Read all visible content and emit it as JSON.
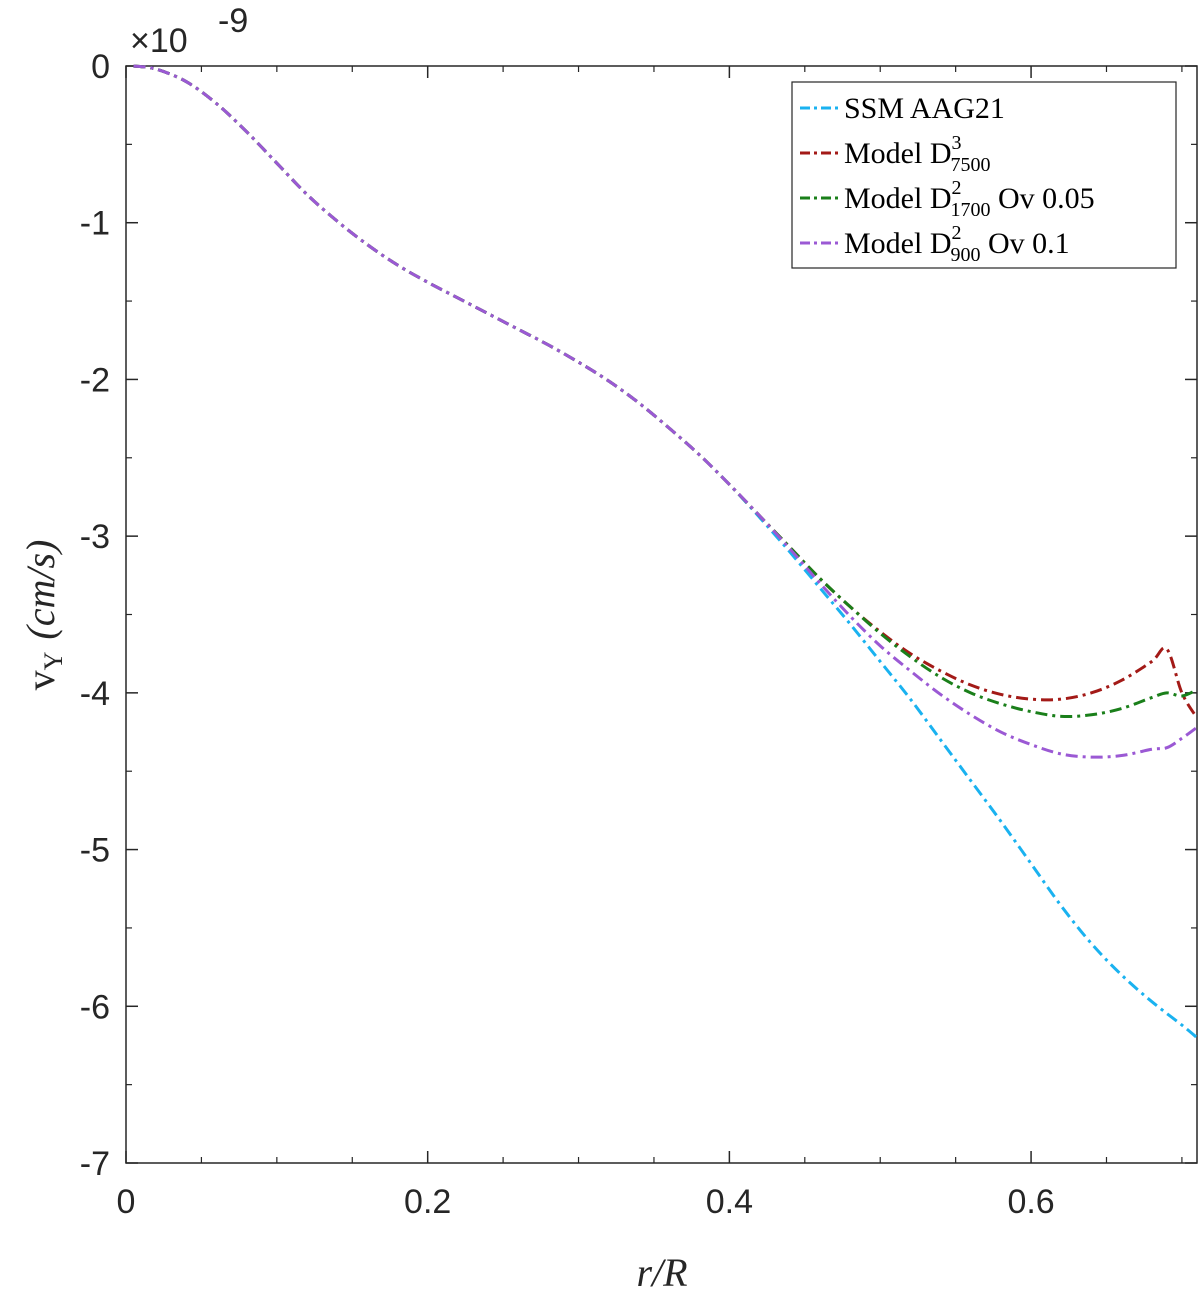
{
  "chart_data": {
    "type": "line",
    "xlabel": "r/R",
    "ylabel_main": "v",
    "ylabel_sub": "Y",
    "ylabel_unit": "(cm/s)",
    "exponent_label": "×10",
    "exponent_power": "-9",
    "xlim": [
      0,
      0.71
    ],
    "ylim": [
      -7,
      0
    ],
    "x_ticks": [
      0,
      0.2,
      0.4,
      0.6
    ],
    "x_tick_labels": [
      "0",
      "0.2",
      "0.4",
      "0.6"
    ],
    "y_ticks": [
      0,
      -1,
      -2,
      -3,
      -4,
      -5,
      -6,
      -7
    ],
    "y_tick_labels": [
      "0",
      "-1",
      "-2",
      "-3",
      "-4",
      "-5",
      "-6",
      "-7"
    ],
    "grid": false,
    "legend_position": "top-right",
    "series": [
      {
        "name": "SSM AAG21",
        "legend_main": "SSM AAG21",
        "legend_sup": "",
        "legend_sub": "",
        "legend_suffix": "",
        "color": "#1ab2f0",
        "x": [
          0.005,
          0.02,
          0.04,
          0.06,
          0.08,
          0.1,
          0.12,
          0.14,
          0.16,
          0.18,
          0.2,
          0.22,
          0.24,
          0.26,
          0.28,
          0.3,
          0.32,
          0.34,
          0.36,
          0.38,
          0.4,
          0.42,
          0.44,
          0.46,
          0.48,
          0.5,
          0.52,
          0.54,
          0.56,
          0.58,
          0.6,
          0.62,
          0.64,
          0.66,
          0.68,
          0.7,
          0.71
        ],
        "y": [
          0,
          -0.02,
          -0.1,
          -0.24,
          -0.42,
          -0.62,
          -0.82,
          -0.99,
          -1.14,
          -1.27,
          -1.38,
          -1.48,
          -1.58,
          -1.68,
          -1.78,
          -1.89,
          -2.01,
          -2.15,
          -2.31,
          -2.48,
          -2.67,
          -2.88,
          -3.1,
          -3.33,
          -3.56,
          -3.8,
          -4.04,
          -4.3,
          -4.56,
          -4.82,
          -5.09,
          -5.36,
          -5.6,
          -5.8,
          -5.97,
          -6.12,
          -6.2
        ]
      },
      {
        "name": "Model D_7500^3",
        "legend_main": "Model D",
        "legend_sup": "3",
        "legend_sub": "7500",
        "legend_suffix": "",
        "color": "#a31a17",
        "x": [
          0.005,
          0.02,
          0.04,
          0.06,
          0.08,
          0.1,
          0.12,
          0.14,
          0.16,
          0.18,
          0.2,
          0.22,
          0.24,
          0.26,
          0.28,
          0.3,
          0.32,
          0.34,
          0.36,
          0.38,
          0.4,
          0.42,
          0.44,
          0.46,
          0.48,
          0.5,
          0.52,
          0.54,
          0.56,
          0.58,
          0.6,
          0.62,
          0.64,
          0.66,
          0.68,
          0.69,
          0.7,
          0.71
        ],
        "y": [
          0,
          -0.02,
          -0.1,
          -0.24,
          -0.42,
          -0.62,
          -0.82,
          -0.99,
          -1.14,
          -1.27,
          -1.38,
          -1.48,
          -1.58,
          -1.68,
          -1.78,
          -1.89,
          -2.01,
          -2.15,
          -2.31,
          -2.48,
          -2.67,
          -2.87,
          -3.07,
          -3.27,
          -3.45,
          -3.61,
          -3.75,
          -3.86,
          -3.95,
          -4.01,
          -4.04,
          -4.04,
          -4.0,
          -3.92,
          -3.8,
          -3.72,
          -4.0,
          -4.16
        ]
      },
      {
        "name": "Model D_1700^2 Ov 0.05",
        "legend_main": "Model D",
        "legend_sup": "2",
        "legend_sub": "1700",
        "legend_suffix": " Ov 0.05",
        "color": "#1a7f1a",
        "x": [
          0.005,
          0.02,
          0.04,
          0.06,
          0.08,
          0.1,
          0.12,
          0.14,
          0.16,
          0.18,
          0.2,
          0.22,
          0.24,
          0.26,
          0.28,
          0.3,
          0.32,
          0.34,
          0.36,
          0.38,
          0.4,
          0.42,
          0.44,
          0.46,
          0.48,
          0.5,
          0.52,
          0.54,
          0.56,
          0.58,
          0.6,
          0.62,
          0.64,
          0.66,
          0.68,
          0.69,
          0.7,
          0.71
        ],
        "y": [
          0,
          -0.02,
          -0.1,
          -0.24,
          -0.42,
          -0.62,
          -0.82,
          -0.99,
          -1.14,
          -1.27,
          -1.38,
          -1.48,
          -1.58,
          -1.68,
          -1.78,
          -1.89,
          -2.01,
          -2.15,
          -2.31,
          -2.48,
          -2.67,
          -2.87,
          -3.07,
          -3.27,
          -3.45,
          -3.62,
          -3.77,
          -3.9,
          -4.0,
          -4.07,
          -4.12,
          -4.15,
          -4.14,
          -4.1,
          -4.03,
          -4.0,
          -4.02,
          -3.98
        ]
      },
      {
        "name": "Model D_900^2 Ov 0.1",
        "legend_main": "Model D",
        "legend_sup": "2",
        "legend_sub": "900",
        "legend_suffix": " Ov 0.1",
        "color": "#9b59d4",
        "x": [
          0.005,
          0.02,
          0.04,
          0.06,
          0.08,
          0.1,
          0.12,
          0.14,
          0.16,
          0.18,
          0.2,
          0.22,
          0.24,
          0.26,
          0.28,
          0.3,
          0.32,
          0.34,
          0.36,
          0.38,
          0.4,
          0.42,
          0.44,
          0.46,
          0.48,
          0.5,
          0.52,
          0.54,
          0.56,
          0.58,
          0.6,
          0.62,
          0.64,
          0.66,
          0.68,
          0.69,
          0.7,
          0.71
        ],
        "y": [
          0,
          -0.02,
          -0.1,
          -0.24,
          -0.42,
          -0.62,
          -0.82,
          -0.99,
          -1.14,
          -1.27,
          -1.38,
          -1.48,
          -1.58,
          -1.68,
          -1.78,
          -1.89,
          -2.01,
          -2.15,
          -2.31,
          -2.48,
          -2.67,
          -2.87,
          -3.08,
          -3.3,
          -3.51,
          -3.7,
          -3.86,
          -4.01,
          -4.14,
          -4.25,
          -4.33,
          -4.39,
          -4.41,
          -4.4,
          -4.36,
          -4.35,
          -4.29,
          -4.22
        ]
      }
    ]
  }
}
